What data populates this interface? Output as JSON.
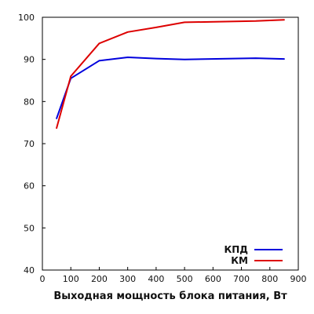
{
  "chart_data": {
    "type": "line",
    "title": "",
    "xlabel": "Выходная мощность блока питания, Вт",
    "ylabel": "",
    "xlim": [
      0,
      900
    ],
    "ylim": [
      40,
      100
    ],
    "x_ticks": [
      0,
      100,
      200,
      300,
      400,
      500,
      600,
      700,
      800,
      900
    ],
    "y_ticks": [
      40,
      50,
      60,
      70,
      80,
      90,
      100
    ],
    "grid": false,
    "legend_position": "bottom-right",
    "series": [
      {
        "name": "КПД",
        "color": "#0000dd",
        "x": [
          50,
          100,
          200,
          300,
          400,
          500,
          750,
          850
        ],
        "y": [
          76,
          85.5,
          89.7,
          90.5,
          90.2,
          90.0,
          90.3,
          90.1
        ]
      },
      {
        "name": "КМ",
        "color": "#dd0000",
        "x": [
          50,
          100,
          200,
          300,
          400,
          500,
          750,
          850
        ],
        "y": [
          73.7,
          86,
          93.8,
          96.5,
          97.6,
          98.8,
          99.1,
          99.4
        ]
      }
    ]
  }
}
